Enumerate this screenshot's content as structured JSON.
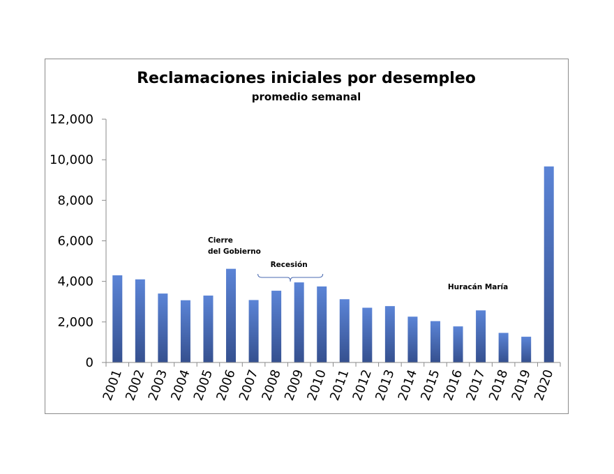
{
  "chart_data": {
    "type": "bar",
    "title": "Reclamaciones iniciales por desempleo",
    "subtitle": "promedio semanal",
    "xlabel": "",
    "ylabel": "",
    "ylim": [
      0,
      12000
    ],
    "yticks": [
      0,
      2000,
      4000,
      6000,
      8000,
      10000,
      12000
    ],
    "ytick_labels": [
      "0",
      "2,000",
      "4,000",
      "6,000",
      "8,000",
      "10,000",
      "12,000"
    ],
    "grid": false,
    "bar_color": "#4f74c2",
    "categories": [
      "2001",
      "2002",
      "2003",
      "2004",
      "2005",
      "2006",
      "2007",
      "2008",
      "2009",
      "2010",
      "2011",
      "2012",
      "2013",
      "2014",
      "2015",
      "2016",
      "2017",
      "2018",
      "2019",
      "2020"
    ],
    "values": [
      4300,
      4100,
      3400,
      3070,
      3300,
      4620,
      3080,
      3540,
      3950,
      3750,
      3120,
      2700,
      2780,
      2260,
      2040,
      1780,
      2570,
      1460,
      1270,
      9670
    ],
    "annotations": [
      {
        "lines": [
          "Cierre",
          "del Gobierno"
        ],
        "category": "2006"
      },
      {
        "lines": [
          "Recesión"
        ],
        "category_range": [
          "2007",
          "2009"
        ]
      },
      {
        "lines": [
          "Huracán María"
        ],
        "category": "2017"
      }
    ]
  }
}
